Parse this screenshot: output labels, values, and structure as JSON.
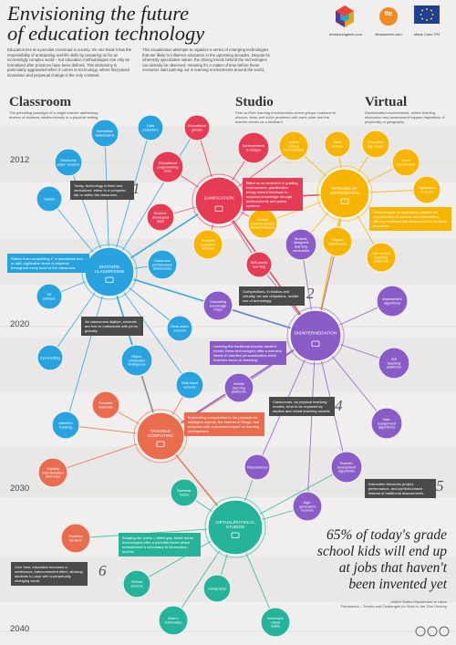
{
  "header": {
    "title_line1": "Envisioning the future",
    "title_line2": "of education technology",
    "intro_left": "Education lies at a peculiar crossroad in society. On one hand it has the responsibility of anticipating real-life skills by preparing us for an increasingly complex world – but education methodologies can only be formalized after practices have been defined. This dichotomy is particularly aggravated when it comes to technology, where fast-paced innovation and perpetual change is the only constant.",
    "intro_right": "This visualization attempts to organize a series of emerging technologies that are likely to influence education in the upcoming decades. Despite its inherently speculative nature, the driving trends behind the technologies can already be observed, meaning it's a matter of time before these scenarios start panning out in learning environments around the world."
  },
  "logos": {
    "envisioning_caption": "envisioningtech.com",
    "tte_text": "tte",
    "tte_caption": "fitnessmeth.com",
    "eu_caption": "Marie Curie ITN"
  },
  "columns": [
    {
      "title": "Classroom",
      "desc": "The prevailing paradigm of a single teacher addressing dozens of students unidirectionally in a physical setting."
    },
    {
      "title": "Studio",
      "desc": "Peer-to-Peer learning environments where groups coalesce to discuss, learn and solve problems with each other and the teacher serves as a facilitator."
    },
    {
      "title": "Virtual",
      "desc": "Disembodied environments, where learning, discussion and assessment happen regardless of physicality or geography."
    }
  ],
  "years": [
    "2012",
    "2020",
    "2030",
    "2040"
  ],
  "colors": {
    "classroom": "#29a3e0",
    "gamification": "#e63b55",
    "information": "#f7b500",
    "disintermediation": "#8a5cc7",
    "tangible": "#e96c4e",
    "virtual": "#25b39a"
  },
  "hubs": {
    "classroom": [
      "DIGITIZED",
      "CLASSROOMS"
    ],
    "gamification": [
      "GAMIFICATION"
    ],
    "information": [
      "OPENING OF",
      "INFORMATION"
    ],
    "disintermediation": [
      "DISINTERMEDIATION"
    ],
    "tangible": [
      "TANGIBLE",
      "COMPUTING"
    ],
    "virtual": [
      "VIRTUAL/PHYSICAL",
      "STUDIOS"
    ]
  },
  "nodes": {
    "interactive_whiteboards": [
      "Interactive",
      "whiteboards"
    ],
    "data_projectors": [
      "Data",
      "projectors"
    ],
    "electronic_paper": [
      "Electronic",
      "paper screens"
    ],
    "tablets": [
      "Tablets"
    ],
    "educational_games": [
      "Educational",
      "games"
    ],
    "educational_tools": [
      "Educational",
      "programming",
      "tools"
    ],
    "student_apps": [
      "Student-",
      "developed",
      "apps"
    ],
    "achievements": [
      "Achievements",
      "& badges"
    ],
    "online_communities": [
      "Online",
      "school",
      "communities"
    ],
    "video_lectures": [
      "Video",
      "lectures"
    ],
    "education_app_stores": [
      "Education",
      "app stores"
    ],
    "open_courseware": [
      "Open",
      "courseware"
    ],
    "digitization_books": [
      "Digitization",
      "of books"
    ],
    "formal_communication": [
      "Formal",
      "communication",
      "(Backchannels)"
    ],
    "portable_academic": [
      "Portable",
      "academic",
      "histories"
    ],
    "self_paced": [
      "Self-paced",
      "learning"
    ],
    "student_designed": [
      "Student-",
      "designed",
      "learning",
      "mechanics"
    ],
    "flipped_classrooms": [
      "Flipped",
      "classrooms"
    ],
    "inter_school": [
      "Inter-school",
      "teaching",
      "platforms"
    ],
    "classroom_dashboards": [
      "Classroom",
      "performance",
      "dashboards"
    ],
    "printers_3d": [
      "3D",
      "printers"
    ],
    "cascading_maps": [
      "Cascading",
      "knowledge",
      "maps"
    ],
    "assessment_algorithms": [
      "Assessment",
      "algorithms"
    ],
    "desk_screens": [
      "Desk-sized",
      "screens"
    ],
    "object_embedded": [
      "Object-",
      "embedded",
      "intelligence"
    ],
    "eye_tracking": [
      "Eye-tracking"
    ],
    "wall_screens": [
      "Wall-sized",
      "screens"
    ],
    "mobile_learning": [
      "Mobile",
      "learning",
      "platforms"
    ],
    "sis_platforms": [
      "SIS",
      "teaching",
      "platforms"
    ],
    "reactive_materials": [
      "Reactive",
      "materials"
    ],
    "attention_tracking": [
      "Attention",
      "tracking"
    ],
    "task_assignment": [
      "Task-",
      "assignment",
      "algorithms"
    ],
    "digital_field_trips": [
      "Digitally",
      "intermediated",
      "field trips"
    ],
    "telepresence": [
      "Telepresence"
    ],
    "teacher_assessment": [
      "Teacher-",
      "assessment",
      "algorithms"
    ],
    "algo_lessons": [
      "Algo-",
      "generated",
      "lessons"
    ],
    "eyewear_huds": [
      "Eyewear",
      "HUDs"
    ],
    "reactive_furniture": [
      "Reactive",
      "furniture"
    ],
    "retinal_screens": [
      "Retinal",
      "screens"
    ],
    "holography": [
      "Holography"
    ],
    "neuro_informatics": [
      "Neuro-",
      "informatics"
    ],
    "immersive_vr": [
      "Immersive",
      "virtual",
      "reality"
    ]
  },
  "notes": {
    "note1": "Today, technology is fixed and centralized, either in a computer lab or within the classroom.",
    "note1_num": "1",
    "gamification": "Billed as an evolution in grading mechanisms, gamification brings instant feedback to acquired knowledge through achievements and points systems.",
    "information": "Dissemination of information outside the physical silos of schools and universities, offering feedback and assessment to students anywhere.",
    "classroom": "Rather than considering IT a standalone tool or skill, digitization tends to disperse throughout every facet of the classroom.",
    "note2": "Compositions, in studios and virtually, we see ubiquitous, mobile use of technology.",
    "note2_num": "2",
    "note3": "As classrooms digitize, students are free to collaborate with peers globally.",
    "note3_num": "3",
    "disintermediation": "Undoing the traditional teacher-student model, these technologies offer a scenario where AI handles personalization while teachers focus on teaching.",
    "note4": "Classrooms, as physical teaching models, tend to be replaced by studios and virtual teaching models.",
    "note4_num": "4",
    "tangible": "Embedding computation to the physical via intelligent objects, the internet of things, and networks with a profound impact on learning mechanisms.",
    "note5": "Instruction becomes project-performance- and portfolio-based instead of traditional assessments.",
    "note5_num": "5",
    "virtual": "Bridging the online / offline gap, these future technologies offer a potential future where embodiment is secondary to information access.",
    "note6": "Over time, education becomes a continuous, interconnected effort, allowing students to cope with a perpetually changing world.",
    "note6_num": "6"
  },
  "stat": {
    "line1": "65% of today's grade",
    "line2": "school kids will end up",
    "line3": "at jobs that haven't",
    "line4": "been invented yet"
  },
  "source": {
    "line1": "United States Department of Labor",
    "line2": "Futurework – Trends and Challenges for Work in the 21st Century"
  }
}
